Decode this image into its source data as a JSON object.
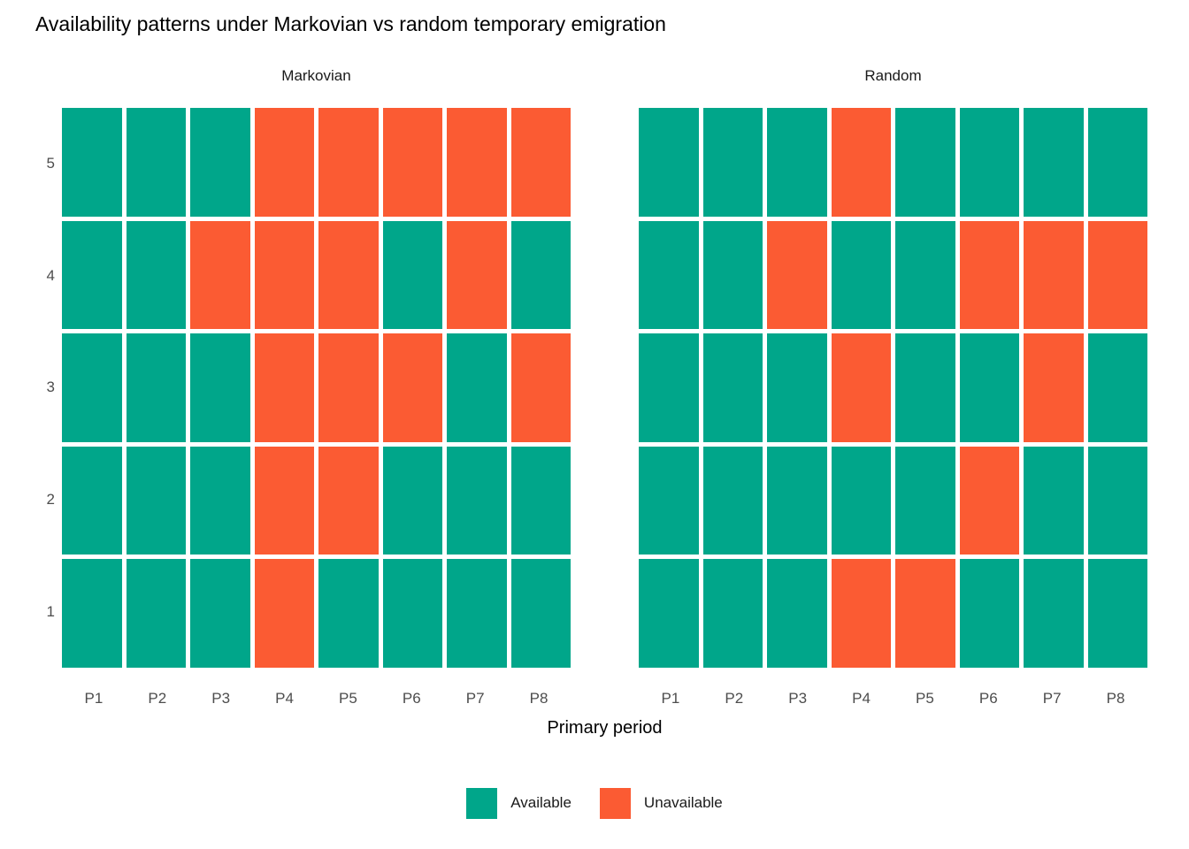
{
  "chart_data": {
    "type": "heatmap",
    "title": "Availability patterns under Markovian vs random temporary emigration",
    "xlabel": "Primary period",
    "ylabel": "",
    "x_categories": [
      "P1",
      "P2",
      "P3",
      "P4",
      "P5",
      "P6",
      "P7",
      "P8"
    ],
    "y_categories_top_to_bottom": [
      "5",
      "4",
      "3",
      "2",
      "1"
    ],
    "legend_position": "bottom",
    "grid": "off",
    "colors": {
      "available": "#00A68A",
      "unavailable": "#FB5B33"
    },
    "legend": [
      {
        "key": "available",
        "label": "Available",
        "color": "#00A68A"
      },
      {
        "key": "unavailable",
        "label": "Unavailable",
        "color": "#FB5B33"
      }
    ],
    "facets": [
      {
        "label": "Markovian",
        "grid_top_to_bottom": [
          [
            "A",
            "A",
            "A",
            "U",
            "U",
            "U",
            "U",
            "U"
          ],
          [
            "A",
            "A",
            "U",
            "U",
            "U",
            "A",
            "U",
            "A"
          ],
          [
            "A",
            "A",
            "A",
            "U",
            "U",
            "U",
            "A",
            "U"
          ],
          [
            "A",
            "A",
            "A",
            "U",
            "U",
            "A",
            "A",
            "A"
          ],
          [
            "A",
            "A",
            "A",
            "U",
            "A",
            "A",
            "A",
            "A"
          ]
        ]
      },
      {
        "label": "Random",
        "grid_top_to_bottom": [
          [
            "A",
            "A",
            "A",
            "U",
            "A",
            "A",
            "A",
            "A"
          ],
          [
            "A",
            "A",
            "U",
            "A",
            "A",
            "U",
            "U",
            "U"
          ],
          [
            "A",
            "A",
            "A",
            "U",
            "A",
            "A",
            "U",
            "A"
          ],
          [
            "A",
            "A",
            "A",
            "A",
            "A",
            "U",
            "A",
            "A"
          ],
          [
            "A",
            "A",
            "A",
            "U",
            "U",
            "A",
            "A",
            "A"
          ]
        ]
      }
    ]
  }
}
